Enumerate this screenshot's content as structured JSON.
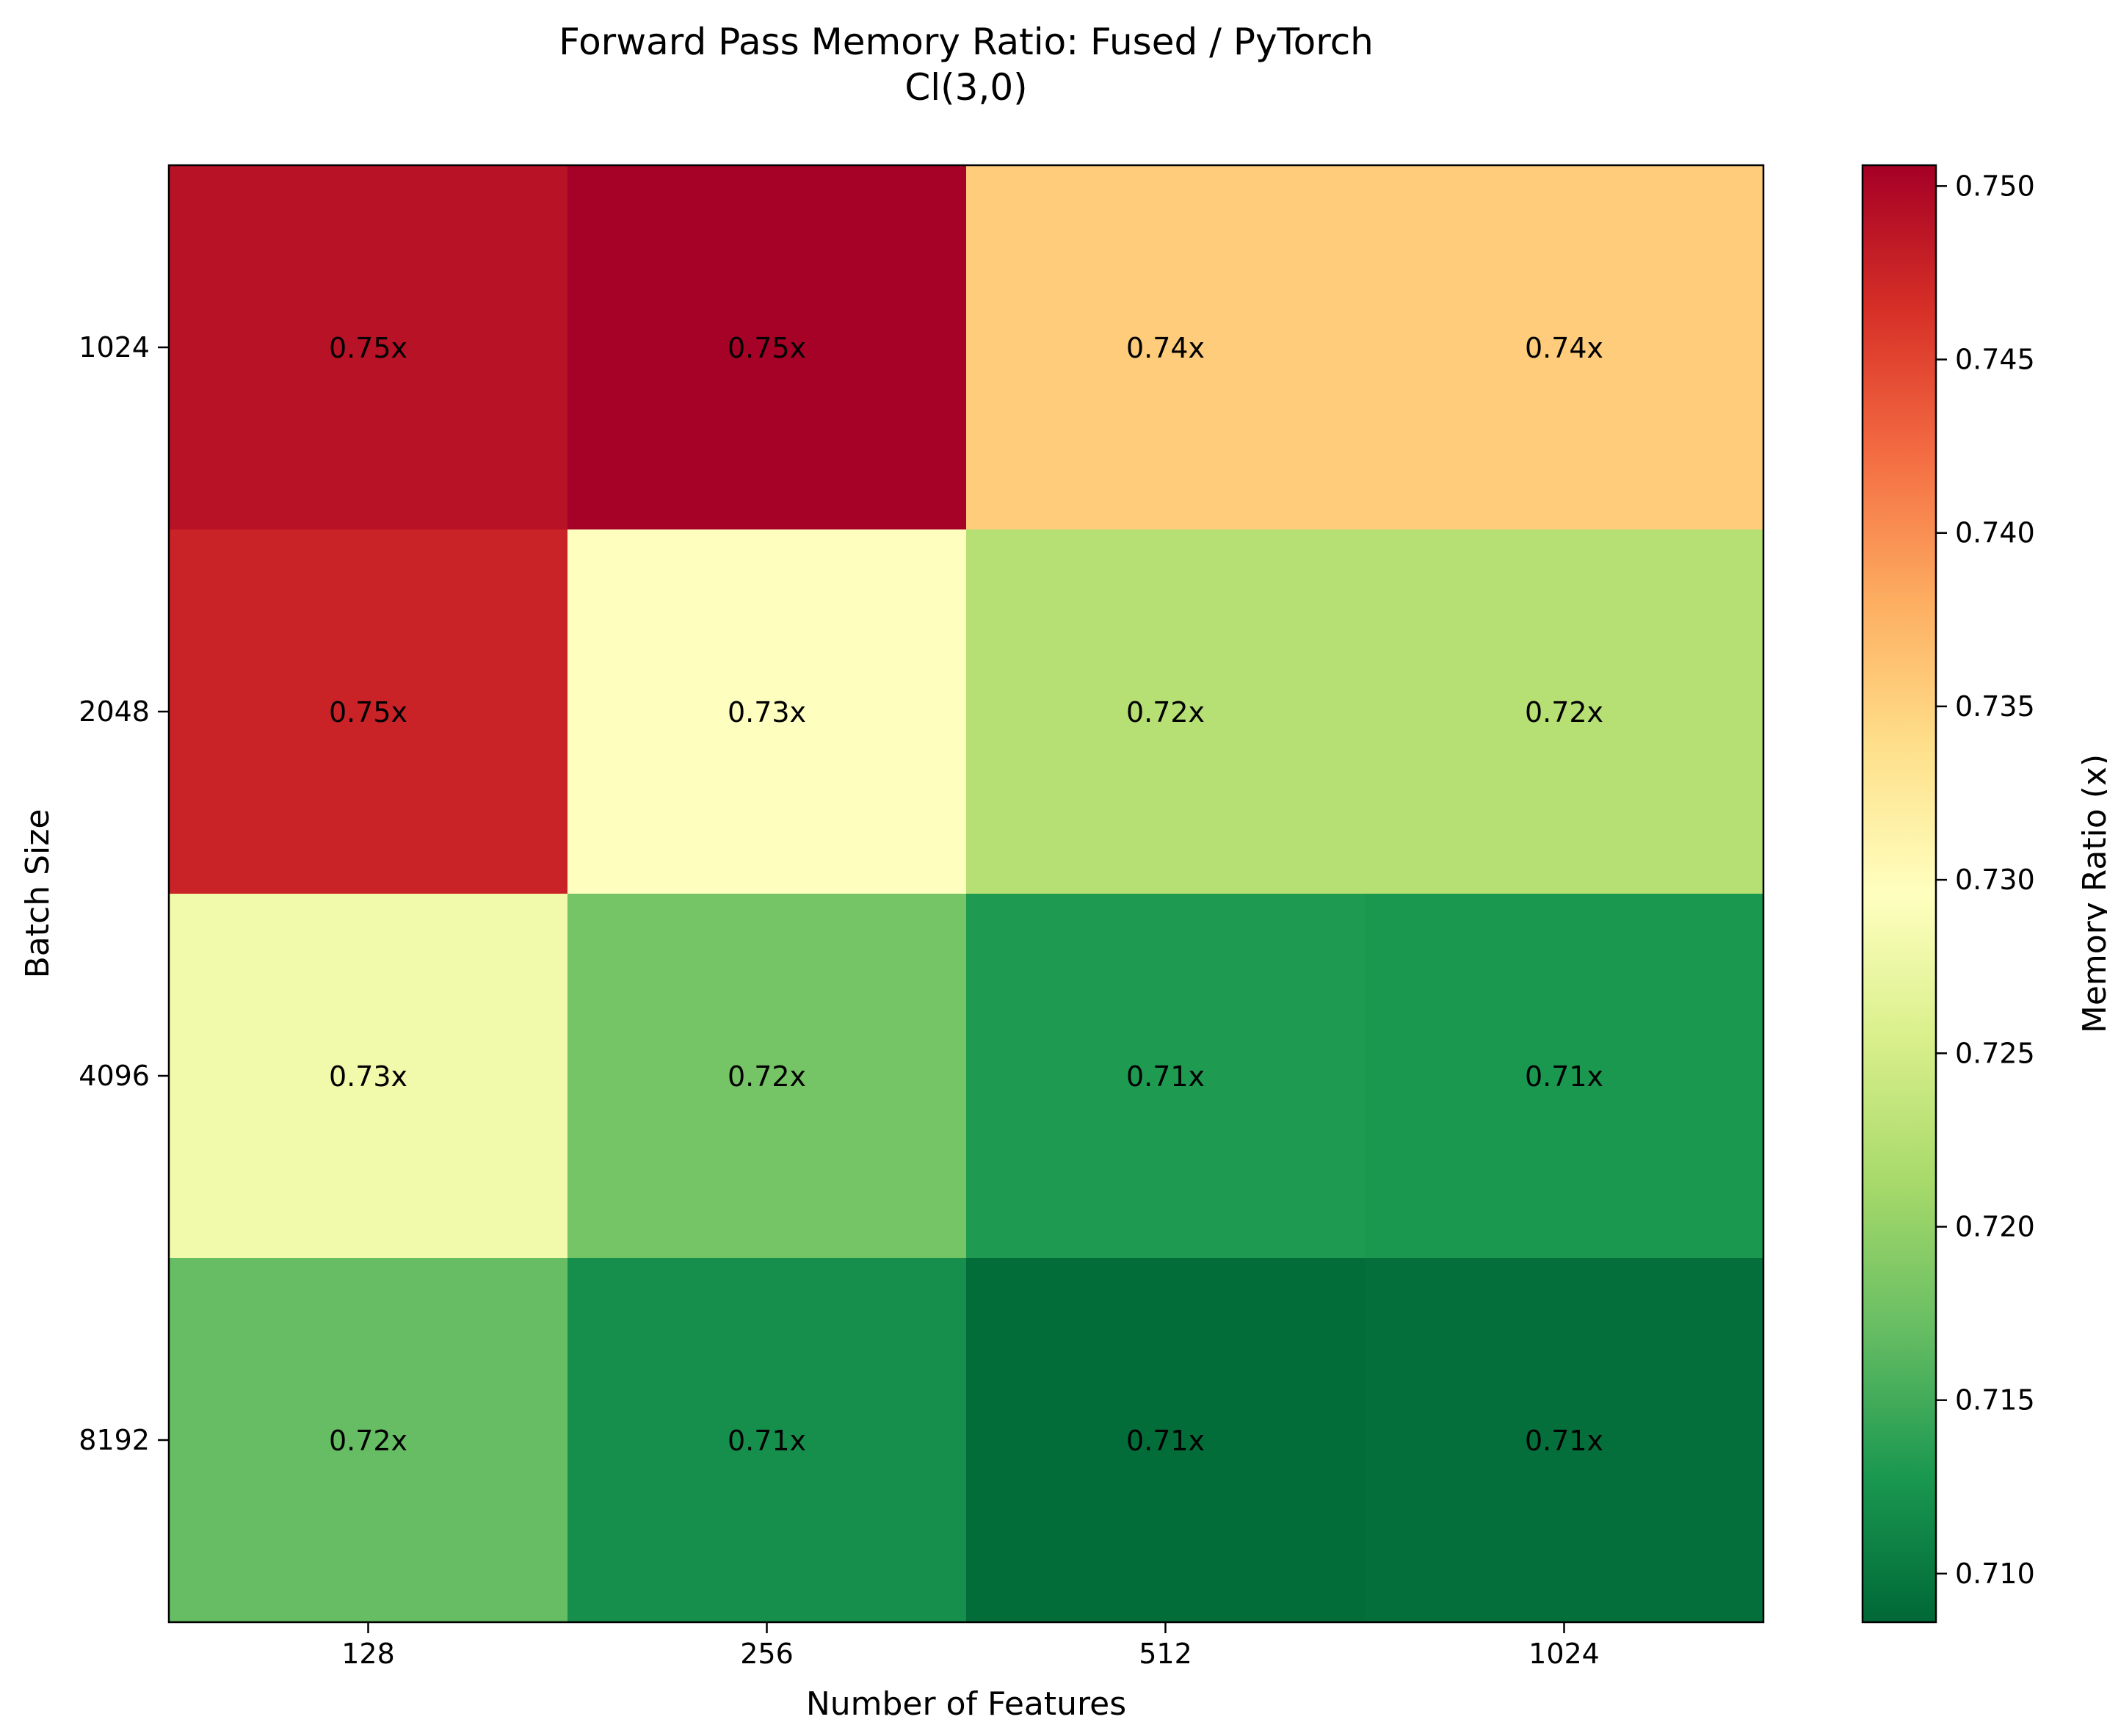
{
  "chart_data": {
    "type": "heatmap",
    "title": "Forward Pass Memory Ratio: Fused / PyTorch",
    "subtitle": "Cl(3,0)",
    "xlabel": "Number of Features",
    "ylabel": "Batch Size",
    "x_categories": [
      "128",
      "256",
      "512",
      "1024"
    ],
    "y_categories": [
      "1024",
      "2048",
      "4096",
      "8192"
    ],
    "values": [
      [
        0.749,
        0.7505,
        0.7355,
        0.7355
      ],
      [
        0.7475,
        0.7295,
        0.7225,
        0.7225
      ],
      [
        0.728,
        0.718,
        0.713,
        0.7128
      ],
      [
        0.717,
        0.712,
        0.709,
        0.7092
      ]
    ],
    "cell_labels": [
      [
        "0.75x",
        "0.75x",
        "0.74x",
        "0.74x"
      ],
      [
        "0.75x",
        "0.73x",
        "0.72x",
        "0.72x"
      ],
      [
        "0.73x",
        "0.72x",
        "0.71x",
        "0.71x"
      ],
      [
        "0.72x",
        "0.71x",
        "0.71x",
        "0.71x"
      ]
    ],
    "colorbar": {
      "label": "Memory Ratio (x)",
      "range": [
        0.7086,
        0.7506
      ],
      "ticks": [
        "0.710",
        "0.715",
        "0.720",
        "0.725",
        "0.730",
        "0.735",
        "0.740",
        "0.745",
        "0.750"
      ],
      "colormap": "RdYlGn_r"
    },
    "grid": false
  }
}
